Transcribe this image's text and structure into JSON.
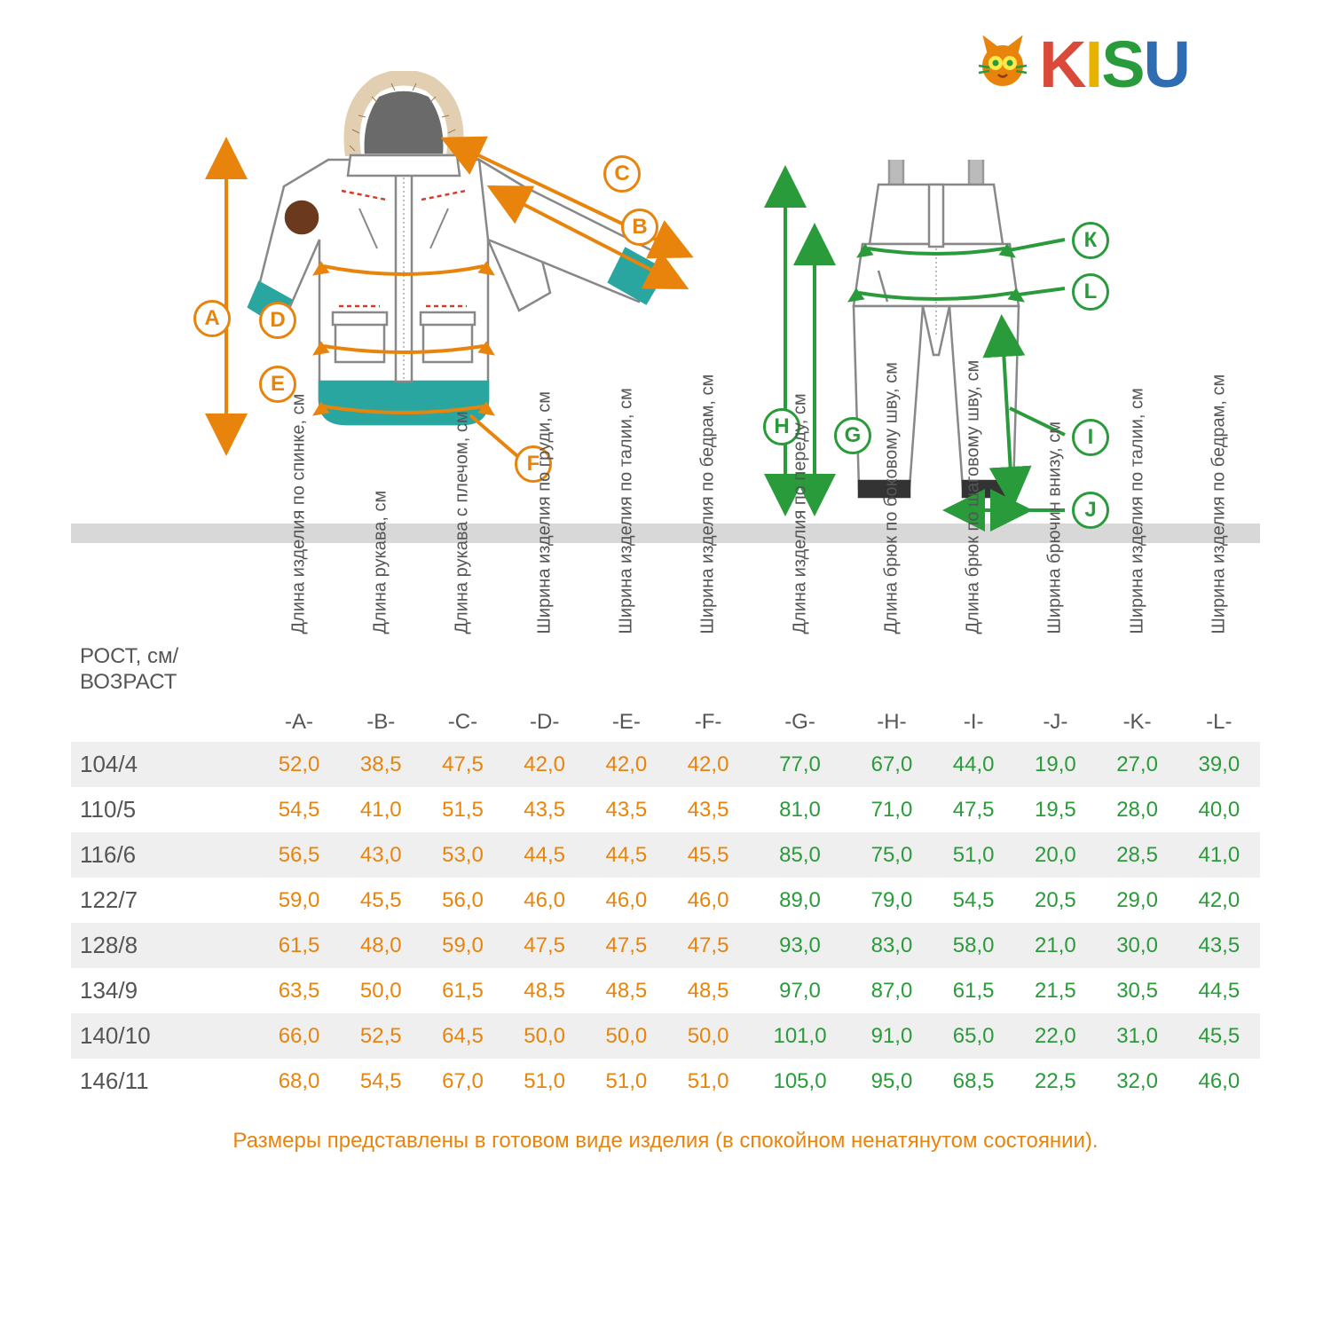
{
  "logo": {
    "letters": [
      "K",
      "I",
      "S",
      "U"
    ],
    "colors": [
      "#d94a3a",
      "#e8b300",
      "#2a9b3a",
      "#2f6db3"
    ],
    "cat_color": "#e8840c"
  },
  "diagram": {
    "jacket_line": "#e8840c",
    "jacket_accent": "#2aa6a0",
    "jacket_outline": "#888888",
    "overalls_line": "#2a9b3a",
    "overalls_outline": "#888888",
    "fur": "#c6a470",
    "red_accent": "#d23c2a",
    "badges_orange": [
      "A",
      "B",
      "C",
      "D",
      "E",
      "F"
    ],
    "badges_green": [
      "G",
      "H",
      "I",
      "J",
      "K",
      "L"
    ]
  },
  "table": {
    "main_header": "РОСТ, см/\nВОЗРАСТ",
    "columns_jacket_headers": [
      "Длина изделия по спинке, см",
      "Длина рукава, см",
      "Длина рукава с плечом, см",
      "Ширина изделия по груди, см",
      "Ширина изделия по талии, см",
      "Ширина изделия по бедрам, см"
    ],
    "columns_overalls_headers": [
      "Длина изделия по переду, см",
      "Длина брюк по боковому шву, см",
      "Длина брюк по шаговому шву, см",
      "Ширина брючин внизу, см",
      "Ширина изделия по талии, см",
      "Ширина изделия по бедрам, см"
    ],
    "series_jacket": [
      "-A-",
      "-B-",
      "-C-",
      "-D-",
      "-E-",
      "-F-"
    ],
    "series_overalls": [
      "-G-",
      "-H-",
      "-I-",
      "-J-",
      "-K-",
      "-L-"
    ],
    "rows": [
      {
        "label": "104/4",
        "j": [
          "52,0",
          "38,5",
          "47,5",
          "42,0",
          "42,0",
          "42,0"
        ],
        "o": [
          "77,0",
          "67,0",
          "44,0",
          "19,0",
          "27,0",
          "39,0"
        ]
      },
      {
        "label": "110/5",
        "j": [
          "54,5",
          "41,0",
          "51,5",
          "43,5",
          "43,5",
          "43,5"
        ],
        "o": [
          "81,0",
          "71,0",
          "47,5",
          "19,5",
          "28,0",
          "40,0"
        ]
      },
      {
        "label": "116/6",
        "j": [
          "56,5",
          "43,0",
          "53,0",
          "44,5",
          "44,5",
          "45,5"
        ],
        "o": [
          "85,0",
          "75,0",
          "51,0",
          "20,0",
          "28,5",
          "41,0"
        ]
      },
      {
        "label": "122/7",
        "j": [
          "59,0",
          "45,5",
          "56,0",
          "46,0",
          "46,0",
          "46,0"
        ],
        "o": [
          "89,0",
          "79,0",
          "54,5",
          "20,5",
          "29,0",
          "42,0"
        ]
      },
      {
        "label": "128/8",
        "j": [
          "61,5",
          "48,0",
          "59,0",
          "47,5",
          "47,5",
          "47,5"
        ],
        "o": [
          "93,0",
          "83,0",
          "58,0",
          "21,0",
          "30,0",
          "43,5"
        ]
      },
      {
        "label": "134/9",
        "j": [
          "63,5",
          "50,0",
          "61,5",
          "48,5",
          "48,5",
          "48,5"
        ],
        "o": [
          "97,0",
          "87,0",
          "61,5",
          "21,5",
          "30,5",
          "44,5"
        ]
      },
      {
        "label": "140/10",
        "j": [
          "66,0",
          "52,5",
          "64,5",
          "50,0",
          "50,0",
          "50,0"
        ],
        "o": [
          "101,0",
          "91,0",
          "65,0",
          "22,0",
          "31,0",
          "45,5"
        ]
      },
      {
        "label": "146/11",
        "j": [
          "68,0",
          "54,5",
          "67,0",
          "51,0",
          "51,0",
          "51,0"
        ],
        "o": [
          "105,0",
          "95,0",
          "68,5",
          "22,5",
          "32,0",
          "46,0"
        ]
      }
    ],
    "footnote": "Размеры представлены в готовом виде изделия (в спокойном ненатянутом состоянии).",
    "color_orange": "#e8840c",
    "color_green": "#2a9b3a",
    "color_label": "#555555",
    "stripe": "#efefef",
    "header_fontsize": 20,
    "cell_fontsize": 24
  }
}
